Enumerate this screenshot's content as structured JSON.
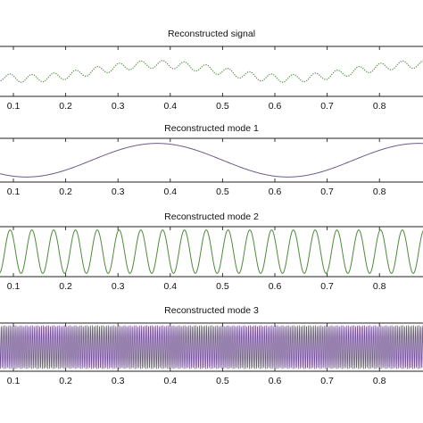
{
  "chart_data": [
    {
      "type": "line",
      "title": "Reconstructed signal",
      "xlabel": "",
      "ylabel": "",
      "xlim": [
        0,
        1
      ],
      "ylim": [
        -1.6,
        1.6
      ],
      "xticks": [
        0.1,
        0.2,
        0.3,
        0.4,
        0.5,
        0.6,
        0.7,
        0.8
      ],
      "grid": false,
      "series": [
        {
          "color": "#4f8a3c",
          "style": "dotted",
          "description_components": [
            {
              "amplitude": 0.45,
              "frequency": 2,
              "phase": 3.1416
            },
            {
              "amplitude": 0.25,
              "frequency": 24,
              "phase": 0
            }
          ]
        }
      ]
    },
    {
      "type": "line",
      "title": "Reconstructed mode 1",
      "xlabel": "",
      "ylabel": "",
      "xlim": [
        0,
        1
      ],
      "ylim": [
        -1.3,
        1.3
      ],
      "xticks": [
        0.1,
        0.2,
        0.3,
        0.4,
        0.5,
        0.6,
        0.7,
        0.8
      ],
      "grid": false,
      "series": [
        {
          "color": "#6a5a8c",
          "style": "solid",
          "description_components": [
            {
              "amplitude": 1.0,
              "frequency": 2,
              "phase": 3.1416
            }
          ]
        }
      ]
    },
    {
      "type": "line",
      "title": "Reconstructed mode 2",
      "xlabel": "",
      "ylabel": "",
      "xlim": [
        0,
        1
      ],
      "ylim": [
        -1.15,
        1.15
      ],
      "xticks": [
        0.1,
        0.2,
        0.3,
        0.4,
        0.5,
        0.6,
        0.7,
        0.8
      ],
      "grid": false,
      "series": [
        {
          "color": "#4f8a3c",
          "style": "solid",
          "description_components": [
            {
              "amplitude": 1.0,
              "frequency": 24,
              "phase": 0
            }
          ]
        }
      ]
    },
    {
      "type": "line",
      "title": "Reconstructed mode 3",
      "xlabel": "",
      "ylabel": "",
      "xlim": [
        0,
        1
      ],
      "ylim": [
        -1.1,
        1.1
      ],
      "xticks": [
        0.1,
        0.2,
        0.3,
        0.4,
        0.5,
        0.6,
        0.7,
        0.8
      ],
      "grid": false,
      "series": [
        {
          "color": "#6a4a8c",
          "style": "solid",
          "description_components": [
            {
              "amplitude": 1.0,
              "frequency": 288,
              "phase": 0
            }
          ]
        }
      ]
    }
  ]
}
